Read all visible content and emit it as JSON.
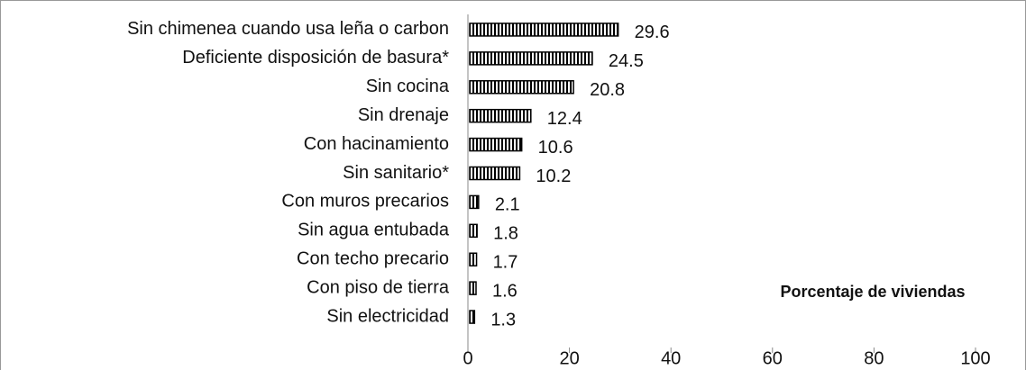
{
  "chart_data": {
    "type": "barh",
    "categories": [
      "Sin chimenea cuando usa leña o carbon",
      "Deficiente disposición de basura*",
      "Sin cocina",
      "Sin drenaje",
      "Con hacinamiento",
      "Sin sanitario*",
      "Con muros precarios",
      "Sin agua entubada",
      "Con techo precario",
      "Con piso de tierra",
      "Sin electricidad"
    ],
    "values": [
      29.6,
      24.5,
      20.8,
      12.4,
      10.6,
      10.2,
      2.1,
      1.8,
      1.7,
      1.6,
      1.3
    ],
    "color": "#000000",
    "xlim": [
      0,
      100
    ],
    "xticks": [
      0,
      20,
      40,
      60,
      80,
      100
    ],
    "xlabel": "Porcentaje de viviendas"
  }
}
